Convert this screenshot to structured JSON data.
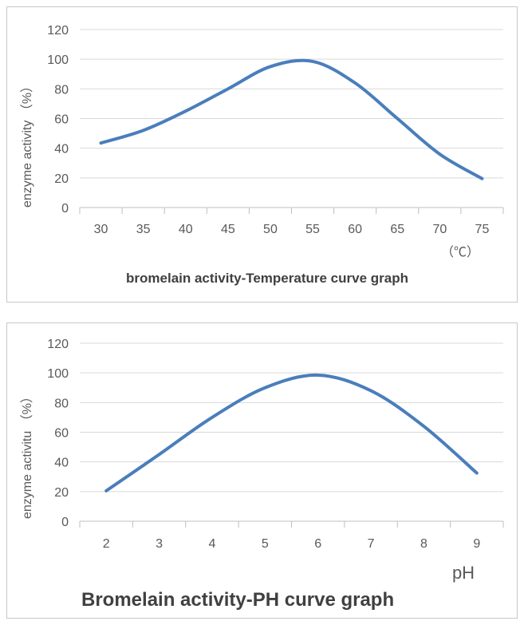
{
  "chart_data": [
    {
      "type": "line",
      "title": "bromelain activity-Temperature curve graph",
      "ylabel": "enzyme activity （%）",
      "xunit": "（℃）",
      "categories": [
        "30",
        "35",
        "40",
        "45",
        "50",
        "55",
        "60",
        "65",
        "70",
        "75"
      ],
      "series": [
        {
          "values": [
            43.5,
            52,
            65,
            80,
            95,
            98.5,
            84,
            60,
            36,
            19.5
          ]
        }
      ],
      "ylim": [
        0,
        120
      ],
      "yticks": [
        "0",
        "20",
        "40",
        "60",
        "80",
        "100",
        "120"
      ],
      "grid": true,
      "color": "#4a7ebb"
    },
    {
      "type": "line",
      "title": "Bromelain activity-PH curve graph",
      "ylabel": "enzyme activitu （%）",
      "xunit": "pH",
      "categories": [
        "2",
        "3",
        "4",
        "5",
        "6",
        "7",
        "8",
        "9"
      ],
      "series": [
        {
          "values": [
            20.5,
            45,
            70,
            90,
            98.5,
            88,
            64,
            32.5
          ]
        }
      ],
      "ylim": [
        0,
        120
      ],
      "yticks": [
        "0",
        "20",
        "40",
        "60",
        "80",
        "100",
        "120"
      ],
      "grid": true,
      "color": "#4a7ebb"
    }
  ]
}
